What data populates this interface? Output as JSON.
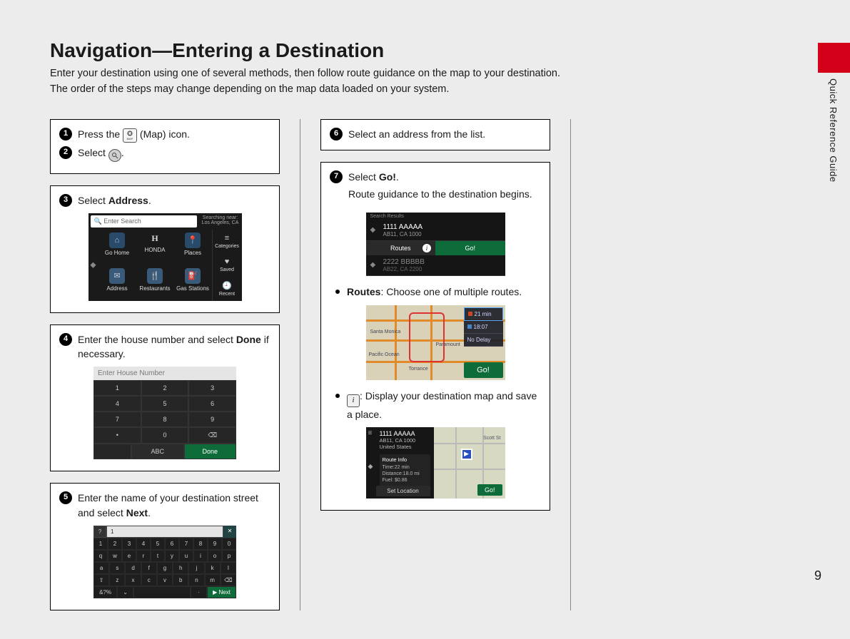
{
  "page_number": "9",
  "side_tab": "Quick Reference Guide",
  "title": "Navigation—Entering a Destination",
  "intro_line1": "Enter your destination using one of several methods, then follow route guidance on the map to your destination.",
  "intro_line2": "The order of the steps may change depending on the map data loaded on your system.",
  "steps": {
    "s1a": "Press the ",
    "s1b": " (Map) icon.",
    "s2a": "Select ",
    "s2b": ".",
    "s3a": "Select ",
    "s3b": "Address",
    "s3c": ".",
    "s4a": "Enter the house number and select ",
    "s4b": "Done",
    "s4c": " if necessary.",
    "s5a": "Enter the name of your destination street and select ",
    "s5b": "Next",
    "s5c": ".",
    "s6": "Select an address from the list.",
    "s7a": "Select ",
    "s7b": "Go!",
    "s7c": ".",
    "s7d": "Route guidance to the destination begins."
  },
  "bullets": {
    "routes_label": "Routes",
    "routes_text": ": Choose one of multiple routes.",
    "info_text": ": Display your destination map and save a place."
  },
  "shot_nav": {
    "search_placeholder": "Enter Search",
    "loc_label": "Searching near:",
    "loc_value": "Los Angeles, CA",
    "cells": [
      "Go Home",
      "HONDA",
      "Places",
      "Address",
      "Restaurants",
      "Gas Stations"
    ],
    "side": [
      "Categories",
      "Saved",
      "Recent"
    ]
  },
  "shot_keypad": {
    "field": "Enter House Number",
    "rows": [
      [
        "1",
        "2",
        "3"
      ],
      [
        "4",
        "5",
        "6"
      ],
      [
        "7",
        "8",
        "9"
      ],
      [
        "•",
        "0",
        "⌫"
      ]
    ],
    "abc": "ABC",
    "done": "Done"
  },
  "shot_kbd": {
    "q": "?",
    "field": "1",
    "row_num": [
      "1",
      "2",
      "3",
      "4",
      "5",
      "6",
      "7",
      "8",
      "9",
      "0"
    ],
    "row_q": [
      "q",
      "w",
      "e",
      "r",
      "t",
      "y",
      "u",
      "i",
      "o",
      "p"
    ],
    "row_a": [
      "a",
      "s",
      "d",
      "f",
      "g",
      "h",
      "j",
      "k",
      "l"
    ],
    "row_z": [
      "⇧",
      "z",
      "x",
      "c",
      "v",
      "b",
      "n",
      "m",
      "⌫"
    ],
    "bot_left": "&?%",
    "bot_alt": "⌄",
    "bot_next": "Next"
  },
  "shot_results": {
    "hdr": "Search Results",
    "r1_t": "1111 AAAAA",
    "r1_s": "AB11, CA 1000",
    "routes": "Routes",
    "go": "Go!",
    "r2_t": "2222 BBBBB",
    "r2_s": "AB22, CA 2200"
  },
  "shot_map1": {
    "opt1": "21 min",
    "opt2": "18:07",
    "opt3": "No Delay",
    "go": "Go!",
    "lbl1": "Santa Monica",
    "lbl2": "Pacific Ocean",
    "lbl3": "Paramount",
    "lbl4": "Torrance"
  },
  "shot_map2": {
    "title": "1111 AAAAA",
    "sub1": "AB11, CA 1000",
    "sub2": "United States",
    "info_h": "Route Info",
    "info1": "Time:22 min",
    "info2": "Distance:18.0 mi",
    "info3": "Fuel: $0.86",
    "setloc": "Set Location",
    "go": "Go!",
    "lbl1": "Scott St"
  }
}
